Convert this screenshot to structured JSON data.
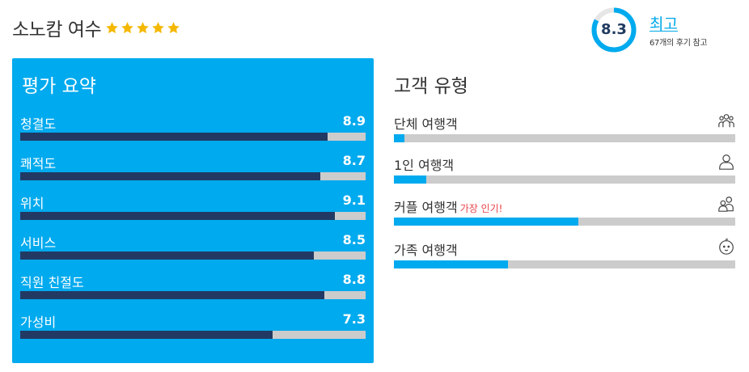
{
  "hotel": {
    "name": "소노캄 여수",
    "stars": 5,
    "star_color": "#f5b800"
  },
  "overall": {
    "score": "8.3",
    "score_fraction": 0.83,
    "label": "최고",
    "reviews_text": "67개의 후기 참고",
    "ring_color": "#00aaee"
  },
  "summary": {
    "title": "평가 요약",
    "items": [
      {
        "label": "청결도",
        "value": "8.9",
        "fill_fraction": 0.89
      },
      {
        "label": "쾌적도",
        "value": "8.7",
        "fill_fraction": 0.87
      },
      {
        "label": "위치",
        "value": "9.1",
        "fill_fraction": 0.91
      },
      {
        "label": "서비스",
        "value": "8.5",
        "fill_fraction": 0.85
      },
      {
        "label": "직원 친절도",
        "value": "8.8",
        "fill_fraction": 0.88
      },
      {
        "label": "가성비",
        "value": "7.3",
        "fill_fraction": 0.73
      }
    ]
  },
  "customers": {
    "title": "고객 유형",
    "types": [
      {
        "label": "단체 여행객",
        "badge": "",
        "icon": "group-icon",
        "fill_fraction": 0.03
      },
      {
        "label": "1인 여행객",
        "badge": "",
        "icon": "person-icon",
        "fill_fraction": 0.095
      },
      {
        "label": "커플 여행객",
        "badge": "가장 인기!",
        "icon": "couple-icon",
        "fill_fraction": 0.54
      },
      {
        "label": "가족 여행객",
        "badge": "",
        "icon": "baby-face-icon",
        "fill_fraction": 0.335
      }
    ]
  }
}
